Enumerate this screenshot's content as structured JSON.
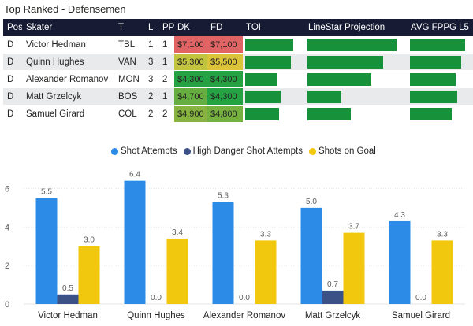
{
  "title": "Top Ranked - Defensemen",
  "table": {
    "headers": {
      "pos": "Pos",
      "skater": "Skater",
      "team": "T",
      "l": "L",
      "pp": "PP",
      "dk": "DK",
      "fd": "FD",
      "toi": "TOI",
      "ls": "LineStar Projection",
      "avg": "AVG FPPG L5"
    },
    "rows": [
      {
        "pos": "D",
        "skater": "Victor Hedman",
        "team": "TBL",
        "l": "1",
        "pp": "1",
        "dk": "$7,100",
        "fd": "$7,100",
        "dk_color": "#e06463",
        "fd_color": "#e06463",
        "toi": 0.86,
        "ls": 0.93,
        "avg": 0.93
      },
      {
        "pos": "D",
        "skater": "Quinn Hughes",
        "team": "VAN",
        "l": "3",
        "pp": "1",
        "dk": "$5,300",
        "fd": "$5,500",
        "dk_color": "#c2c440",
        "fd_color": "#dcc43a",
        "toi": 0.82,
        "ls": 0.79,
        "avg": 0.86
      },
      {
        "pos": "D",
        "skater": "Alexander Romanov",
        "team": "MON",
        "l": "3",
        "pp": "2",
        "dk": "$4,300",
        "fd": "$4,300",
        "dk_color": "#25a244",
        "fd_color": "#25a244",
        "toi": 0.58,
        "ls": 0.66,
        "avg": 0.77
      },
      {
        "pos": "D",
        "skater": "Matt Grzelcyk",
        "team": "BOS",
        "l": "2",
        "pp": "1",
        "dk": "$4,700",
        "fd": "$4,300",
        "dk_color": "#67ae40",
        "fd_color": "#25a244",
        "toi": 0.63,
        "ls": 0.35,
        "avg": 0.8
      },
      {
        "pos": "D",
        "skater": "Samuel Girard",
        "team": "COL",
        "l": "2",
        "pp": "2",
        "dk": "$4,900",
        "fd": "$4,800",
        "dk_color": "#86b43e",
        "fd_color": "#76b13f",
        "toi": 0.6,
        "ls": 0.45,
        "avg": 0.71
      }
    ],
    "bar_color": "#17923b"
  },
  "chart_data": {
    "type": "bar",
    "categories": [
      "Victor Hedman",
      "Quinn Hughes",
      "Alexander Romanov",
      "Matt Grzelcyk",
      "Samuel Girard"
    ],
    "series": [
      {
        "name": "Shot Attempts",
        "color": "#2b8be6",
        "values": [
          5.5,
          6.4,
          5.3,
          5.0,
          4.3
        ],
        "labels": [
          "5.5",
          "6.4",
          "5.3",
          "5.0",
          "4.3"
        ]
      },
      {
        "name": "High Danger Shot Attempts",
        "color": "#3c5287",
        "values": [
          0.5,
          0.0,
          0.0,
          0.7,
          0.0
        ],
        "labels": [
          "0.5",
          "0.0",
          "0.0",
          "0.7",
          "0.0"
        ]
      },
      {
        "name": "Shots on Goal",
        "color": "#f2c80f",
        "values": [
          3.0,
          3.4,
          3.3,
          3.7,
          3.3
        ],
        "labels": [
          "3.0",
          "3.4",
          "3.3",
          "3.7",
          "3.3"
        ]
      }
    ],
    "yticks": [
      "0",
      "2",
      "4",
      "6"
    ],
    "ylim": [
      0,
      7
    ],
    "grid": true,
    "legend_position": "top-center"
  }
}
